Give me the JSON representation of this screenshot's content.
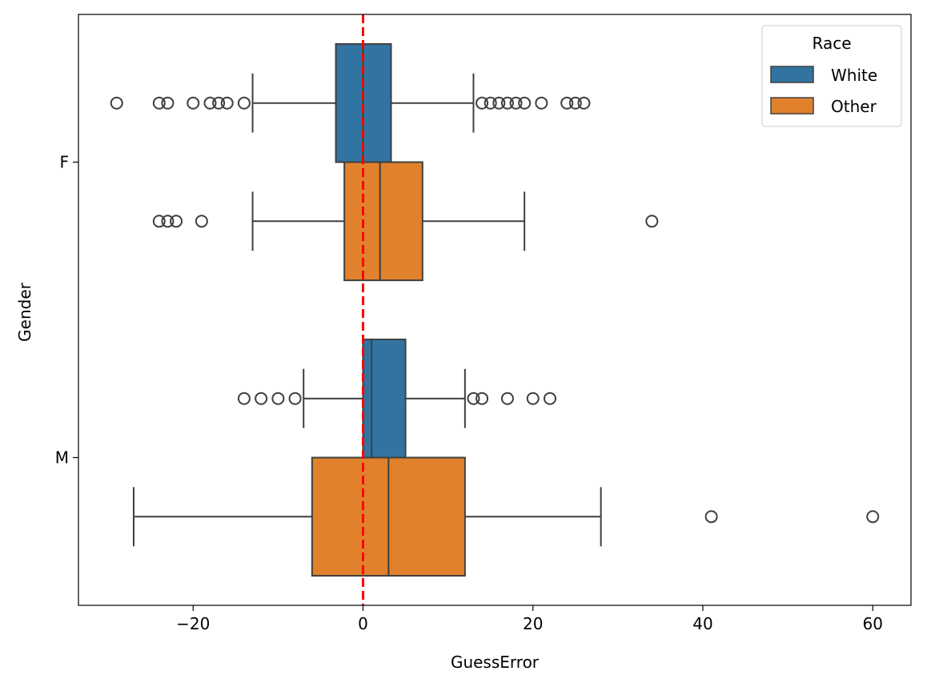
{
  "chart_data": {
    "type": "box",
    "orientation": "horizontal",
    "title": "",
    "xlabel": "GuessError",
    "ylabel": "Gender",
    "xlim": [
      -33.5,
      64.5
    ],
    "xticks": [
      -20,
      0,
      20,
      40,
      60
    ],
    "xtick_labels": [
      "−20",
      "0",
      "20",
      "40",
      "60"
    ],
    "categories": [
      "F",
      "M"
    ],
    "legend": {
      "title": "Race",
      "placement": "top-right",
      "entries": [
        "White",
        "Other"
      ]
    },
    "colors": {
      "White": "#3274a1",
      "Other": "#e1812c",
      "reference_line": "#ff0000",
      "edge": "#3f3f3f"
    },
    "reference_line": {
      "x": 0,
      "style": "dashed"
    },
    "series": [
      {
        "name": "White",
        "boxes": [
          {
            "category": "F",
            "whislo": -13,
            "q1": -3.2,
            "med": 0,
            "q3": 3.3,
            "whishi": 13,
            "fliers": [
              -29,
              -24,
              -23,
              -20,
              -18,
              -17,
              -16,
              -14,
              14,
              15,
              16,
              17,
              18,
              19,
              21,
              24,
              25,
              26
            ]
          },
          {
            "category": "M",
            "whislo": -7,
            "q1": 0,
            "med": 1,
            "q3": 5,
            "whishi": 12,
            "fliers": [
              -14,
              -12,
              -10,
              -8,
              13,
              14,
              17,
              20,
              22
            ]
          }
        ]
      },
      {
        "name": "Other",
        "boxes": [
          {
            "category": "F",
            "whislo": -13,
            "q1": -2.2,
            "med": 2,
            "q3": 7,
            "whishi": 19,
            "fliers": [
              -24,
              -23,
              -22,
              -19,
              34
            ]
          },
          {
            "category": "M",
            "whislo": -27,
            "q1": -6,
            "med": 3,
            "q3": 12,
            "whishi": 28,
            "fliers": [
              41,
              60
            ]
          }
        ]
      }
    ]
  }
}
